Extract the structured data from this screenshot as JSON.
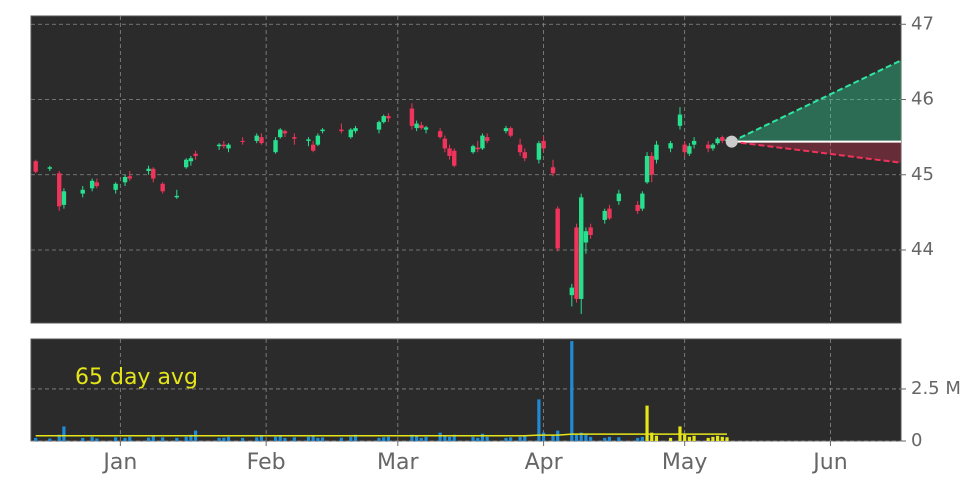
{
  "chart_data": [
    {
      "type": "candlestick",
      "xlim": [
        -19,
        166
      ],
      "ylim": [
        43.03,
        47.11
      ],
      "yticks": [
        44,
        45,
        46,
        47
      ],
      "grid": true,
      "up_color": "#27e08e",
      "down_color": "#f0335a",
      "x": [
        -18,
        -15,
        -13,
        -12,
        -8,
        -6,
        -5,
        -1,
        1,
        2,
        6,
        7,
        9,
        12,
        14,
        15,
        16,
        21,
        22,
        23,
        26,
        29,
        30,
        33,
        34,
        35,
        37,
        40,
        41,
        42,
        43,
        47,
        49,
        50,
        55,
        56,
        57,
        62,
        63,
        64,
        65,
        68,
        69,
        70,
        71,
        75,
        76,
        77,
        78,
        82,
        83,
        85,
        86,
        89,
        90,
        92,
        93,
        96,
        97,
        98,
        99,
        100,
        103,
        104,
        106,
        110,
        111,
        112,
        113,
        114,
        117,
        119,
        120,
        121,
        122,
        125,
        126,
        127,
        128,
        129
      ],
      "open": [
        45.18,
        45.08,
        45.02,
        44.6,
        44.75,
        44.82,
        44.9,
        44.8,
        44.9,
        44.98,
        45.05,
        45.08,
        44.88,
        44.7,
        45.1,
        45.18,
        45.28,
        45.38,
        45.4,
        45.35,
        45.45,
        45.45,
        45.5,
        45.3,
        45.5,
        45.58,
        45.5,
        45.45,
        45.4,
        45.4,
        45.58,
        45.6,
        45.5,
        45.58,
        45.6,
        45.7,
        45.78,
        45.88,
        45.62,
        45.66,
        45.6,
        45.58,
        45.48,
        45.35,
        45.32,
        45.3,
        45.36,
        45.35,
        45.5,
        45.58,
        45.62,
        45.4,
        45.3,
        45.2,
        45.45,
        45.1,
        44.55,
        43.4,
        44.3,
        43.35,
        44.1,
        44.3,
        44.4,
        44.55,
        44.65,
        44.6,
        44.55,
        44.9,
        45.25,
        45.2,
        45.35,
        45.65,
        45.4,
        45.28,
        45.4,
        45.4,
        45.35,
        45.42,
        45.5,
        45.45
      ],
      "high": [
        45.2,
        45.12,
        45.05,
        44.82,
        44.85,
        44.95,
        44.95,
        44.9,
        45.0,
        45.05,
        45.12,
        45.1,
        44.9,
        44.8,
        45.22,
        45.25,
        45.32,
        45.42,
        45.45,
        45.42,
        45.5,
        45.55,
        45.55,
        45.5,
        45.62,
        45.6,
        45.55,
        45.5,
        45.45,
        45.55,
        45.62,
        45.68,
        45.62,
        45.65,
        45.72,
        45.8,
        45.82,
        45.95,
        45.72,
        45.7,
        45.65,
        45.62,
        45.52,
        45.4,
        45.35,
        45.4,
        45.45,
        45.55,
        45.55,
        45.65,
        45.64,
        45.48,
        45.35,
        45.45,
        45.52,
        45.2,
        44.58,
        43.55,
        44.35,
        44.75,
        44.3,
        44.35,
        44.55,
        44.6,
        44.8,
        44.65,
        44.78,
        45.3,
        45.3,
        45.45,
        45.45,
        45.9,
        45.45,
        45.42,
        45.5,
        45.45,
        45.42,
        45.5,
        45.52,
        45.5
      ],
      "low": [
        45.02,
        45.05,
        44.52,
        44.55,
        44.7,
        44.78,
        44.82,
        44.75,
        44.85,
        44.92,
        45.0,
        44.9,
        44.75,
        44.68,
        45.08,
        45.12,
        45.2,
        45.33,
        45.35,
        45.3,
        45.4,
        45.42,
        45.4,
        45.28,
        45.48,
        45.5,
        45.4,
        45.38,
        45.3,
        45.38,
        45.55,
        45.55,
        45.48,
        45.55,
        45.55,
        45.68,
        45.7,
        45.6,
        45.58,
        45.6,
        45.55,
        45.48,
        45.3,
        45.2,
        45.1,
        45.28,
        45.3,
        45.33,
        45.42,
        45.55,
        45.5,
        45.25,
        45.18,
        45.15,
        45.3,
        44.98,
        43.98,
        43.25,
        43.3,
        43.15,
        43.95,
        44.15,
        44.35,
        44.4,
        44.6,
        44.48,
        44.52,
        44.88,
        44.9,
        45.15,
        45.3,
        45.6,
        45.25,
        45.25,
        45.35,
        45.3,
        45.32,
        45.4,
        45.42,
        45.42
      ],
      "close": [
        45.04,
        45.1,
        44.58,
        44.78,
        44.8,
        44.92,
        44.85,
        44.88,
        44.97,
        44.95,
        45.08,
        44.95,
        44.78,
        44.72,
        45.2,
        45.22,
        45.25,
        45.4,
        45.38,
        45.4,
        45.44,
        45.52,
        45.42,
        45.46,
        45.6,
        45.55,
        45.48,
        45.47,
        45.32,
        45.52,
        45.6,
        45.58,
        45.6,
        45.62,
        45.7,
        45.78,
        45.75,
        45.65,
        45.68,
        45.62,
        45.63,
        45.5,
        45.35,
        45.25,
        45.12,
        45.38,
        45.34,
        45.52,
        45.45,
        45.62,
        45.52,
        45.3,
        45.22,
        45.42,
        45.35,
        45.02,
        44.02,
        43.5,
        43.35,
        44.7,
        44.25,
        44.2,
        44.52,
        44.42,
        44.75,
        44.52,
        44.75,
        45.25,
        45.0,
        45.4,
        45.42,
        45.8,
        45.3,
        45.38,
        45.45,
        45.35,
        45.4,
        45.48,
        45.45,
        45.47
      ],
      "forecast": {
        "x": [
          130,
          166
        ],
        "base": [
          45.44,
          45.44
        ],
        "upper": [
          45.44,
          46.52
        ],
        "lower": [
          45.44,
          45.16
        ],
        "upper_color": "#2ee6a0",
        "lower_color": "#f0335a",
        "marker_color": "#cccccc"
      }
    },
    {
      "type": "bar",
      "xlim": [
        -19,
        166
      ],
      "ylim": [
        0,
        4900000
      ],
      "yticks": [
        0,
        {
          "value": 2500000,
          "label": "2.5 M"
        }
      ],
      "grid": true,
      "xticks": [
        {
          "value": 0,
          "label": "Jan"
        },
        {
          "value": 31,
          "label": "Feb"
        },
        {
          "value": 59,
          "label": "Mar"
        },
        {
          "value": 90,
          "label": "Apr"
        },
        {
          "value": 120,
          "label": "May"
        },
        {
          "value": 151,
          "label": "Jun"
        }
      ],
      "series": [
        {
          "color": "#1f8ad6",
          "values": [
            150000,
            120000,
            300000,
            700000,
            150000,
            200000,
            120000,
            180000,
            150000,
            200000,
            160000,
            250000,
            180000,
            150000,
            200000,
            300000,
            500000,
            150000,
            160000,
            200000,
            150000,
            180000,
            220000,
            200000,
            250000,
            150000,
            180000,
            200000,
            280000,
            150000,
            170000,
            160000,
            200000,
            300000,
            150000,
            180000,
            200000,
            300000,
            250000,
            150000,
            200000,
            400000,
            250000,
            200000,
            300000,
            200000,
            150000,
            350000,
            200000,
            150000,
            180000,
            200000,
            250000,
            2000000,
            400000,
            300000,
            500000,
            4800000,
            300000,
            400000,
            300000,
            200000,
            150000,
            200000,
            180000,
            150000,
            200000,
            null,
            null,
            null,
            null,
            null,
            null,
            null,
            null,
            null,
            null,
            null,
            null,
            null
          ]
        },
        {
          "color": "#e5e51a",
          "values": [
            null,
            null,
            null,
            null,
            null,
            null,
            null,
            null,
            null,
            null,
            null,
            null,
            null,
            null,
            null,
            null,
            null,
            null,
            null,
            null,
            null,
            null,
            null,
            null,
            null,
            null,
            null,
            null,
            null,
            null,
            null,
            null,
            null,
            null,
            null,
            null,
            null,
            null,
            null,
            null,
            null,
            null,
            null,
            null,
            null,
            null,
            null,
            null,
            null,
            null,
            null,
            null,
            null,
            null,
            null,
            null,
            null,
            null,
            null,
            null,
            null,
            null,
            null,
            null,
            null,
            null,
            null,
            1700000,
            400000,
            250000,
            150000,
            700000,
            300000,
            200000,
            250000,
            150000,
            200000,
            250000,
            200000,
            180000
          ]
        }
      ],
      "average": {
        "label": "65 day avg",
        "color": "#e5e51a",
        "values": [
          250000,
          250000,
          250000,
          250000,
          250000,
          250000,
          250000,
          250000,
          250000,
          250000,
          250000,
          250000,
          250000,
          250000,
          250000,
          250000,
          250000,
          250000,
          250000,
          250000,
          250000,
          250000,
          250000,
          250000,
          250000,
          250000,
          250000,
          250000,
          250000,
          250000,
          250000,
          250000,
          250000,
          250000,
          250000,
          250000,
          250000,
          250000,
          250000,
          250000,
          250000,
          250000,
          250000,
          250000,
          250000,
          250000,
          250000,
          250000,
          250000,
          250000,
          250000,
          250000,
          250000,
          280000,
          280000,
          280000,
          280000,
          330000,
          330000,
          330000,
          330000,
          330000,
          330000,
          330000,
          330000,
          330000,
          330000,
          330000,
          330000,
          330000,
          330000,
          330000,
          330000,
          330000,
          330000,
          330000,
          330000,
          330000,
          330000,
          330000
        ]
      }
    }
  ]
}
